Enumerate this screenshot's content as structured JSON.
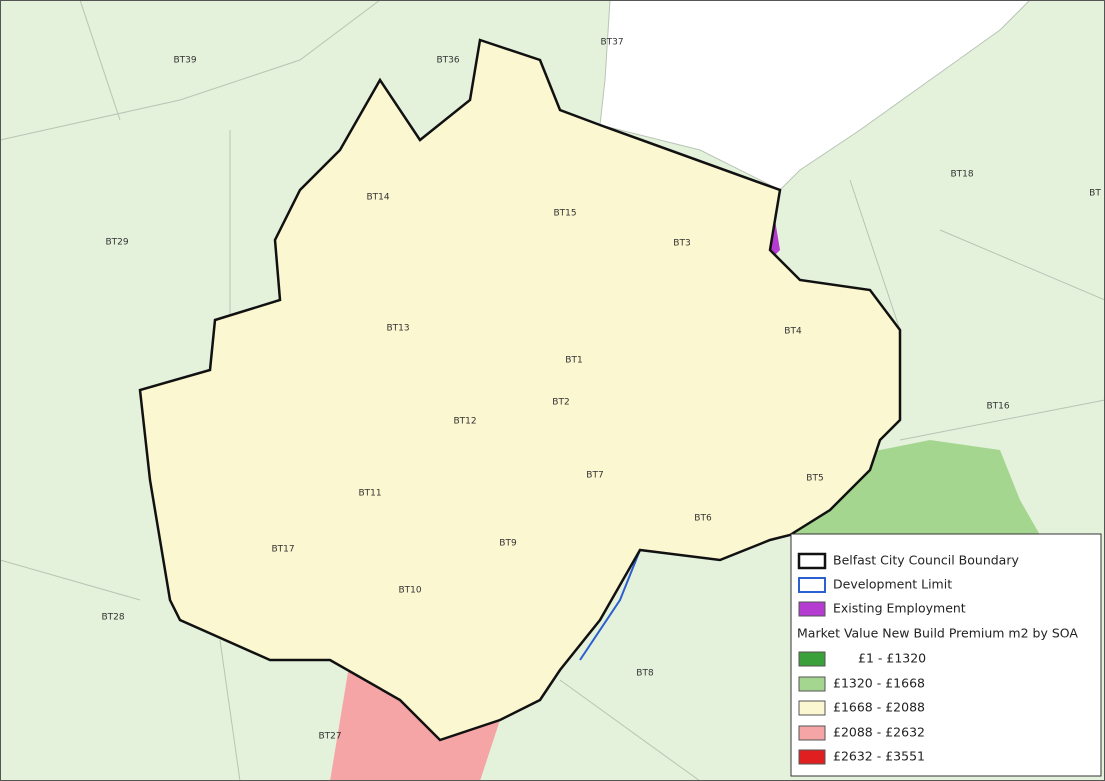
{
  "map_labels": [
    "BT39",
    "BT36",
    "BT37",
    "BT18",
    "BT",
    "BT29",
    "BT14",
    "BT15",
    "BT3",
    "BT13",
    "BT1",
    "BT4",
    "BT2",
    "BT12",
    "BT16",
    "BT7",
    "BT5",
    "BT11",
    "BT6",
    "BT17",
    "BT9",
    "BT10",
    "BT28",
    "BT8",
    "BT27"
  ],
  "legend": {
    "boundary": "Belfast City Council Boundary",
    "development": "Development Limit",
    "employment": "Existing Employment",
    "title": "Market Value New Build Premium m2 by SOA",
    "classes": [
      "£1 - £1320",
      "£1320 - £1668",
      "£1668 - £2088",
      "£2088 - £2632",
      "£2632 - £3551"
    ]
  }
}
